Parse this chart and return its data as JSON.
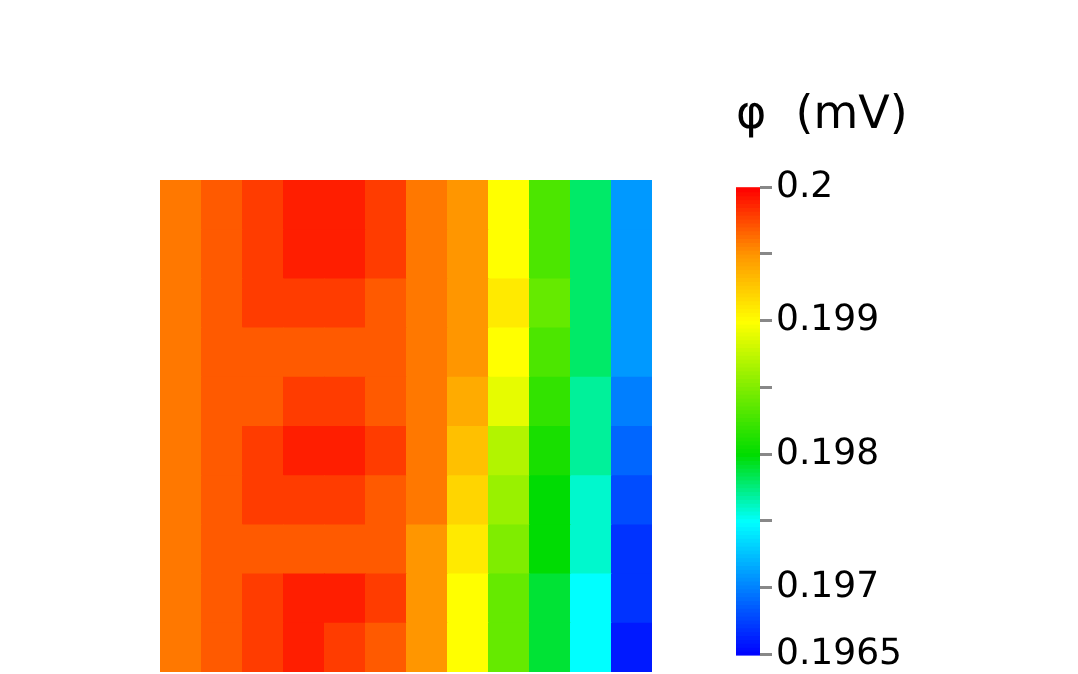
{
  "chart_data": {
    "type": "heatmap",
    "clabel": "φ  (mV)",
    "tick_labels": false,
    "categories": [
      null,
      null,
      null,
      null,
      null,
      null,
      null,
      null,
      null,
      null,
      null,
      null
    ],
    "y_categories": [
      null,
      null,
      null,
      null,
      null,
      null,
      null,
      null,
      null,
      null
    ],
    "cells": [
      [
        0.1996,
        0.1997,
        0.1998,
        0.1999,
        0.1999,
        0.1998,
        0.1996,
        0.1995,
        0.199,
        0.1983,
        0.1978,
        0.1971
      ],
      [
        0.1996,
        0.1997,
        0.1998,
        0.1999,
        0.1999,
        0.1998,
        0.1996,
        0.1995,
        0.199,
        0.1983,
        0.1978,
        0.1971
      ],
      [
        0.1996,
        0.1997,
        0.1998,
        0.1998,
        0.1998,
        0.1997,
        0.1996,
        0.1995,
        0.1991,
        0.1984,
        0.1978,
        0.1971
      ],
      [
        0.1996,
        0.1997,
        0.1997,
        0.1997,
        0.1997,
        0.1997,
        0.1996,
        0.1995,
        0.199,
        0.1983,
        0.1978,
        0.1971
      ],
      [
        0.1996,
        0.1997,
        0.1997,
        0.1998,
        0.1998,
        0.1997,
        0.1996,
        0.1994,
        0.1989,
        0.1982,
        0.1977,
        0.197
      ],
      [
        0.1996,
        0.1997,
        0.1998,
        0.1999,
        0.1999,
        0.1998,
        0.1996,
        0.1993,
        0.1987,
        0.1981,
        0.1977,
        0.1969
      ],
      [
        0.1996,
        0.1997,
        0.1998,
        0.1998,
        0.1998,
        0.1997,
        0.1996,
        0.1992,
        0.1986,
        0.198,
        0.1976,
        0.1968
      ],
      [
        0.1996,
        0.1997,
        0.1997,
        0.1997,
        0.1997,
        0.1997,
        0.1995,
        0.1991,
        0.1985,
        0.198,
        0.1976,
        0.1967
      ],
      [
        0.1996,
        0.1997,
        0.1998,
        0.1999,
        0.1999,
        0.1998,
        0.1995,
        0.199,
        0.1984,
        0.1979,
        0.1975,
        0.1967
      ],
      [
        0.1996,
        0.1997,
        0.1998,
        0.1999,
        0.1998,
        0.1997,
        0.1995,
        0.199,
        0.1984,
        0.1979,
        0.1975,
        0.1966
      ]
    ],
    "clim": [
      0.1965,
      0.2
    ],
    "cticks": [
      0.2,
      {
        "value": 0.1995,
        "label": null
      },
      0.199,
      {
        "value": 0.1985,
        "label": null
      },
      0.198,
      {
        "value": 0.1975,
        "label": null
      },
      0.197,
      0.1965
    ]
  }
}
